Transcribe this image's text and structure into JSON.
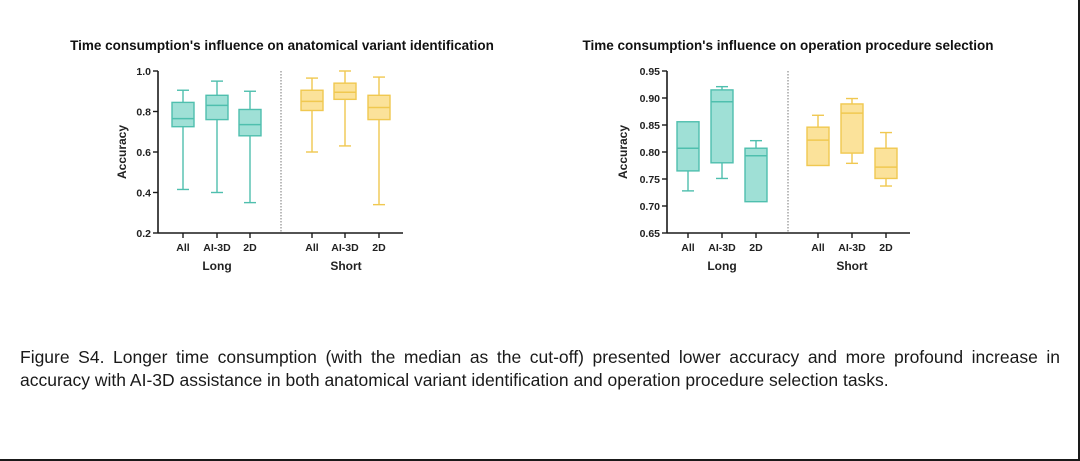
{
  "chart_data": [
    {
      "type": "box",
      "title": "Time consumption's influence on anatomical variant identification",
      "xlabel": "",
      "ylabel": "Accuracy",
      "ylim": [
        0.2,
        1.0
      ],
      "yticks": [
        "0.2",
        "0.4",
        "0.6",
        "0.8",
        "1.0"
      ],
      "ytick_values": [
        0.2,
        0.4,
        0.6,
        0.8,
        1.0
      ],
      "groups": [
        {
          "name": "Long",
          "color": "#5cc8b8",
          "categories": [
            "All",
            "AI-3D",
            "2D"
          ],
          "boxes": [
            {
              "min": 0.415,
              "q1": 0.725,
              "median": 0.765,
              "q3": 0.845,
              "max": 0.905
            },
            {
              "min": 0.4,
              "q1": 0.76,
              "median": 0.83,
              "q3": 0.88,
              "max": 0.95
            },
            {
              "min": 0.35,
              "q1": 0.68,
              "median": 0.735,
              "q3": 0.81,
              "max": 0.9
            }
          ]
        },
        {
          "name": "Short",
          "color": "#f5cf5a",
          "categories": [
            "All",
            "AI-3D",
            "2D"
          ],
          "boxes": [
            {
              "min": 0.6,
              "q1": 0.805,
              "median": 0.85,
              "q3": 0.905,
              "max": 0.965
            },
            {
              "min": 0.63,
              "q1": 0.86,
              "median": 0.895,
              "q3": 0.94,
              "max": 1.0
            },
            {
              "min": 0.34,
              "q1": 0.76,
              "median": 0.82,
              "q3": 0.88,
              "max": 0.97
            }
          ]
        }
      ]
    },
    {
      "type": "box",
      "title": "Time consumption's influence on operation procedure selection",
      "xlabel": "",
      "ylabel": "Accuracy",
      "ylim": [
        0.65,
        0.95
      ],
      "yticks": [
        "0.65",
        "0.70",
        "0.75",
        "0.80",
        "0.85",
        "0.90",
        "0.95"
      ],
      "ytick_values": [
        0.65,
        0.7,
        0.75,
        0.8,
        0.85,
        0.9,
        0.95
      ],
      "groups": [
        {
          "name": "Long",
          "color": "#5cc8b8",
          "categories": [
            "All",
            "AI-3D",
            "2D"
          ],
          "boxes": [
            {
              "min": 0.728,
              "q1": 0.765,
              "median": 0.807,
              "q3": 0.856,
              "max": 0.856
            },
            {
              "min": 0.751,
              "q1": 0.78,
              "median": 0.893,
              "q3": 0.915,
              "max": 0.921
            },
            {
              "min": 0.708,
              "q1": 0.708,
              "median": 0.793,
              "q3": 0.807,
              "max": 0.821
            }
          ]
        },
        {
          "name": "Short",
          "color": "#f5cf5a",
          "categories": [
            "All",
            "AI-3D",
            "2D"
          ],
          "boxes": [
            {
              "min": 0.775,
              "q1": 0.775,
              "median": 0.822,
              "q3": 0.846,
              "max": 0.868
            },
            {
              "min": 0.779,
              "q1": 0.798,
              "median": 0.872,
              "q3": 0.889,
              "max": 0.899
            },
            {
              "min": 0.737,
              "q1": 0.751,
              "median": 0.772,
              "q3": 0.807,
              "max": 0.836
            }
          ]
        }
      ]
    }
  ],
  "caption": "Figure S4. Longer time consumption (with the median as the cut-off) presented lower accuracy and more profound increase in accuracy with AI-3D assistance in both anatomical variant identification and operation procedure selection tasks.",
  "colors": {
    "long_stroke": "#4fbfae",
    "long_fill": "#9fe0d6",
    "short_stroke": "#f0c850",
    "short_fill": "#fbe29a",
    "axis": "#1a1a1a"
  }
}
